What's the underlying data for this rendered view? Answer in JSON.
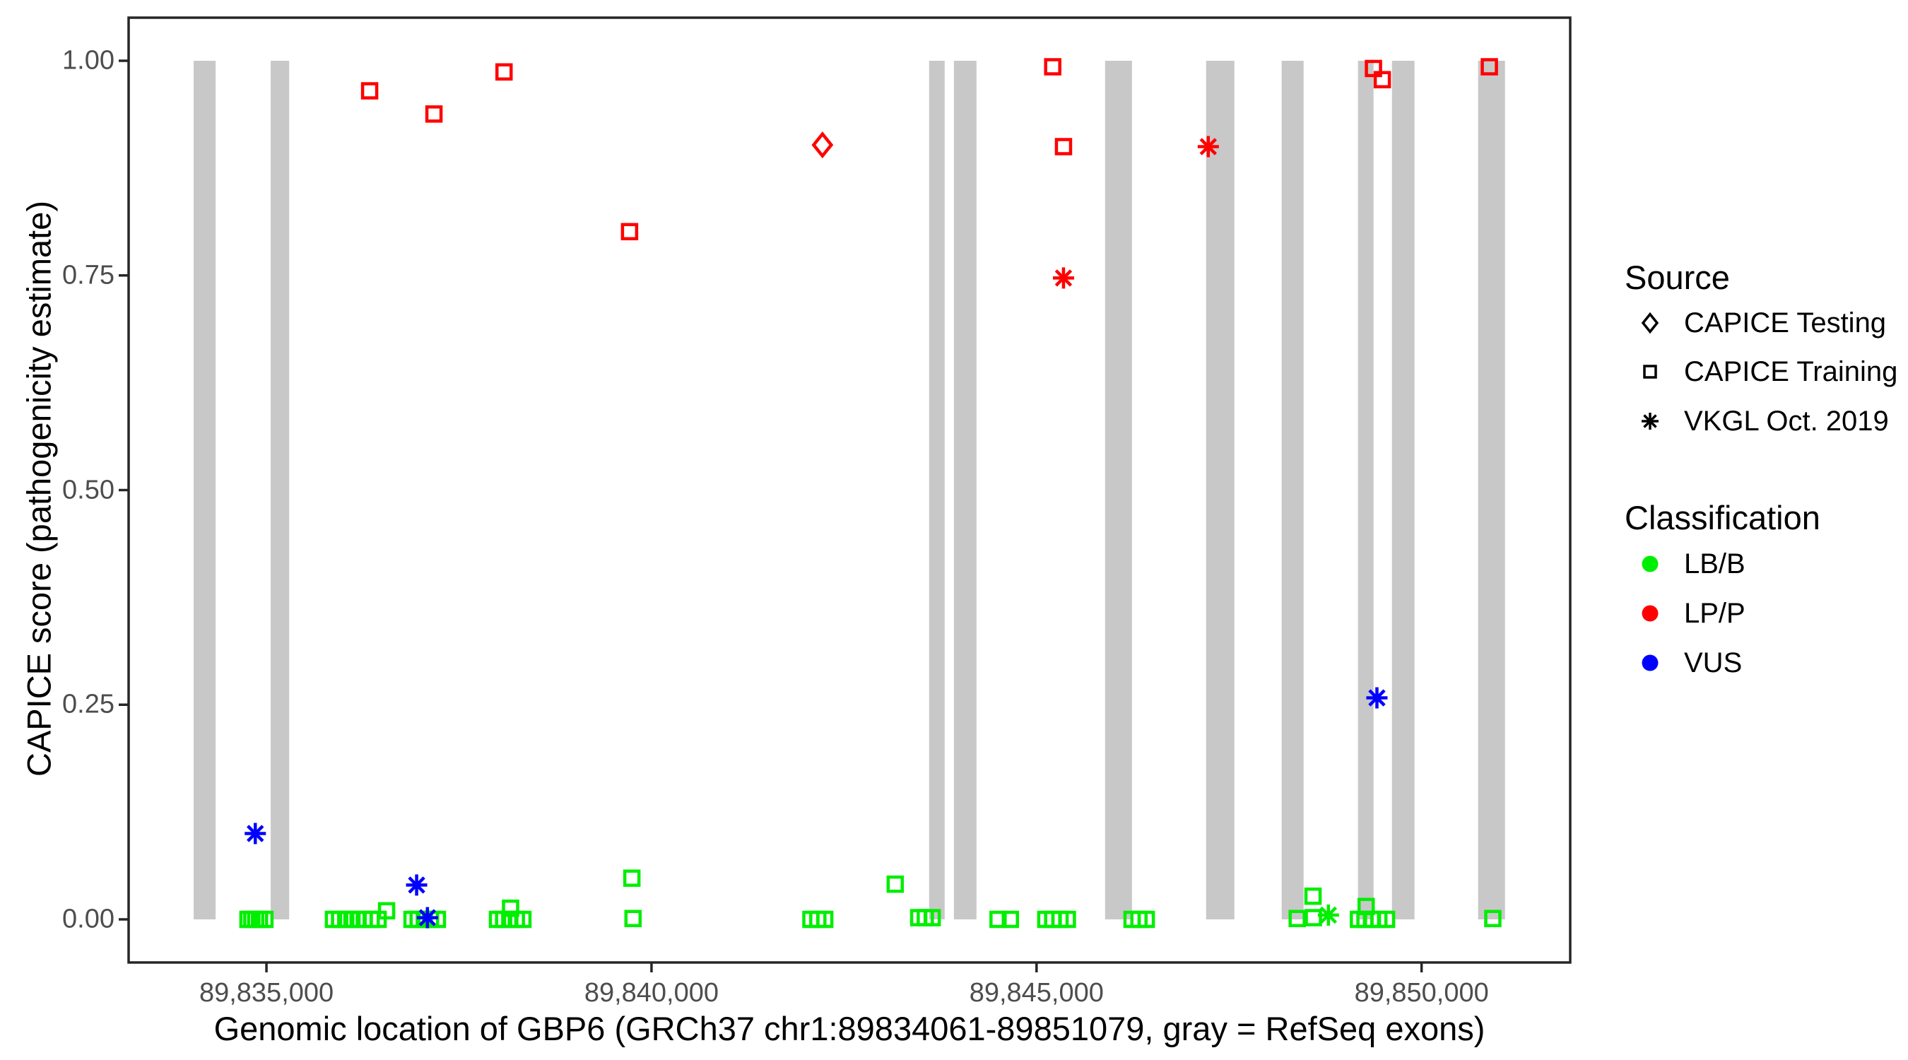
{
  "chart_data": {
    "type": "scatter",
    "xlabel": "Genomic location of GBP6 (GRCh37 chr1:89834061-89851079, gray = RefSeq exons)",
    "ylabel": "CAPICE score (pathogenicity estimate)",
    "x_domain": [
      89833210,
      89851930
    ],
    "y_domain": [
      -0.0502,
      1.0502
    ],
    "x_ticks": [
      {
        "value": 89835000,
        "label": "89,835,000"
      },
      {
        "value": 89840000,
        "label": "89,840,000"
      },
      {
        "value": 89845000,
        "label": "89,845,000"
      },
      {
        "value": 89850000,
        "label": "89,850,000"
      }
    ],
    "y_ticks": [
      {
        "value": 0.0,
        "label": "0.00"
      },
      {
        "value": 0.25,
        "label": "0.25"
      },
      {
        "value": 0.5,
        "label": "0.50"
      },
      {
        "value": 0.75,
        "label": "0.75"
      },
      {
        "value": 1.0,
        "label": "1.00"
      }
    ],
    "gene_region": [
      89834061,
      89851079
    ],
    "exons": [
      [
        89834055,
        89834340
      ],
      [
        89835055,
        89835295
      ],
      [
        89843605,
        89843807
      ],
      [
        89843927,
        89844220
      ],
      [
        89845890,
        89846239
      ],
      [
        89847202,
        89847569
      ],
      [
        89848183,
        89848468
      ],
      [
        89849174,
        89849376
      ],
      [
        89849615,
        89849908
      ],
      [
        89850734,
        89851083
      ]
    ],
    "point_columns": [
      "genomic_position",
      "capice_score",
      "source",
      "classification"
    ],
    "points": [
      [
        89834760,
        0.0,
        "training",
        "LB/B"
      ],
      [
        89834810,
        0.0,
        "training",
        "LB/B"
      ],
      [
        89834860,
        0.0,
        "training",
        "LB/B"
      ],
      [
        89834910,
        0.0,
        "training",
        "LB/B"
      ],
      [
        89834980,
        0.0,
        "training",
        "LB/B"
      ],
      [
        89835870,
        0.0,
        "training",
        "LB/B"
      ],
      [
        89835950,
        0.0,
        "training",
        "LB/B"
      ],
      [
        89836030,
        0.0,
        "training",
        "LB/B"
      ],
      [
        89836110,
        0.0,
        "training",
        "LB/B"
      ],
      [
        89836190,
        0.0,
        "training",
        "LB/B"
      ],
      [
        89836270,
        0.0,
        "training",
        "LB/B"
      ],
      [
        89836360,
        0.0,
        "training",
        "LB/B"
      ],
      [
        89836450,
        0.0,
        "training",
        "LB/B"
      ],
      [
        89836560,
        0.01,
        "training",
        "LB/B"
      ],
      [
        89836890,
        0.0,
        "training",
        "LB/B"
      ],
      [
        89836970,
        0.0,
        "training",
        "LB/B"
      ],
      [
        89837050,
        0.0,
        "training",
        "LB/B"
      ],
      [
        89837130,
        0.0,
        "training",
        "LB/B"
      ],
      [
        89837220,
        0.0,
        "training",
        "LB/B"
      ],
      [
        89838000,
        0.0,
        "training",
        "LB/B"
      ],
      [
        89838080,
        0.0,
        "training",
        "LB/B"
      ],
      [
        89838160,
        0.0,
        "training",
        "LB/B"
      ],
      [
        89838245,
        0.0,
        "training",
        "LB/B"
      ],
      [
        89838330,
        0.0,
        "training",
        "LB/B"
      ],
      [
        89838170,
        0.013,
        "training",
        "LB/B"
      ],
      [
        89839745,
        0.048,
        "training",
        "LB/B"
      ],
      [
        89839760,
        0.001,
        "training",
        "LB/B"
      ],
      [
        89842070,
        0.0,
        "training",
        "LB/B"
      ],
      [
        89842160,
        0.0,
        "training",
        "LB/B"
      ],
      [
        89842250,
        0.0,
        "training",
        "LB/B"
      ],
      [
        89843165,
        0.041,
        "training",
        "LB/B"
      ],
      [
        89843470,
        0.002,
        "training",
        "LB/B"
      ],
      [
        89843555,
        0.002,
        "training",
        "LB/B"
      ],
      [
        89843645,
        0.002,
        "training",
        "LB/B"
      ],
      [
        89844500,
        0.0,
        "training",
        "LB/B"
      ],
      [
        89844660,
        0.0,
        "training",
        "LB/B"
      ],
      [
        89845120,
        0.0,
        "training",
        "LB/B"
      ],
      [
        89845210,
        0.0,
        "training",
        "LB/B"
      ],
      [
        89845305,
        0.0,
        "training",
        "LB/B"
      ],
      [
        89845400,
        0.0,
        "training",
        "LB/B"
      ],
      [
        89846240,
        0.0,
        "training",
        "LB/B"
      ],
      [
        89846330,
        0.0,
        "training",
        "LB/B"
      ],
      [
        89846425,
        0.0,
        "training",
        "LB/B"
      ],
      [
        89848385,
        0.001,
        "training",
        "LB/B"
      ],
      [
        89848590,
        0.027,
        "training",
        "LB/B"
      ],
      [
        89848595,
        0.002,
        "training",
        "LB/B"
      ],
      [
        89849280,
        0.015,
        "training",
        "LB/B"
      ],
      [
        89849180,
        0.0,
        "training",
        "LB/B"
      ],
      [
        89849265,
        0.0,
        "training",
        "LB/B"
      ],
      [
        89849350,
        0.0,
        "training",
        "LB/B"
      ],
      [
        89849445,
        0.0,
        "training",
        "LB/B"
      ],
      [
        89849545,
        0.0,
        "training",
        "LB/B"
      ],
      [
        89850925,
        0.001,
        "training",
        "LB/B"
      ],
      [
        89848790,
        0.005,
        "vkgl",
        "LB/B"
      ],
      [
        89834855,
        0.1,
        "vkgl",
        "VUS"
      ],
      [
        89836950,
        0.04,
        "vkgl",
        "VUS"
      ],
      [
        89837090,
        0.002,
        "vkgl",
        "VUS"
      ],
      [
        89849420,
        0.258,
        "vkgl",
        "VUS"
      ],
      [
        89836340,
        0.965,
        "training",
        "LP/P"
      ],
      [
        89837175,
        0.938,
        "training",
        "LP/P"
      ],
      [
        89838085,
        0.987,
        "training",
        "LP/P"
      ],
      [
        89839715,
        0.801,
        "training",
        "LP/P"
      ],
      [
        89842220,
        0.902,
        "testing",
        "LP/P"
      ],
      [
        89845210,
        0.993,
        "training",
        "LP/P"
      ],
      [
        89845350,
        0.9,
        "training",
        "LP/P"
      ],
      [
        89845350,
        0.747,
        "vkgl",
        "LP/P"
      ],
      [
        89847230,
        0.9,
        "vkgl",
        "LP/P"
      ],
      [
        89849375,
        0.991,
        "training",
        "LP/P"
      ],
      [
        89849490,
        0.978,
        "training",
        "LP/P"
      ],
      [
        89850880,
        0.993,
        "training",
        "LP/P"
      ]
    ]
  },
  "legend": {
    "source": {
      "title": "Source",
      "items": [
        {
          "label": "CAPICE Testing",
          "marker": "diamond"
        },
        {
          "label": "CAPICE Training",
          "marker": "square"
        },
        {
          "label": "VKGL Oct. 2019",
          "marker": "asterisk"
        }
      ]
    },
    "classification": {
      "title": "Classification",
      "items": [
        {
          "label": "LB/B",
          "color": "#00EE00"
        },
        {
          "label": "LP/P",
          "color": "#FF0000"
        },
        {
          "label": "VUS",
          "color": "#0000FF"
        }
      ]
    }
  },
  "colors": {
    "LB/B": "#00EE00",
    "LP/P": "#FF0000",
    "VUS": "#0000FF",
    "exon": "#C8C8C8",
    "panel_border": "#262626",
    "tick_text": "#4D4D4D"
  }
}
